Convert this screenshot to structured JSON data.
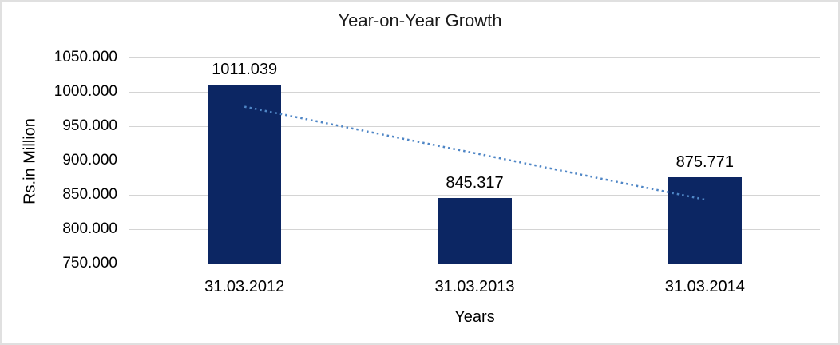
{
  "chart_data": {
    "type": "bar",
    "title": "Year-on-Year Growth",
    "categories": [
      "31.03.2012",
      "31.03.2013",
      "31.03.2014"
    ],
    "values": [
      1011.039,
      845.317,
      875.771
    ],
    "data_labels": [
      "1011.039",
      "845.317",
      "875.771"
    ],
    "xlabel": "Years",
    "ylabel": "Rs.in Million",
    "ylim": [
      750,
      1050
    ],
    "ytick_step": 50,
    "ytick_labels": [
      "1050.000",
      "1000.000",
      "950.000",
      "900.000",
      "850.000",
      "800.000",
      "750.000"
    ],
    "grid": true,
    "legend": "none",
    "trendline": {
      "type": "linear",
      "style": "dotted"
    },
    "colors": {
      "bar": "#0c2663",
      "trendline": "#4f86c6",
      "gridline": "#d4d4d4",
      "text": "#000000",
      "frame_outer": "#e0e0e0",
      "frame_inner": "#9a9a9a",
      "background": "#ffffff"
    }
  }
}
